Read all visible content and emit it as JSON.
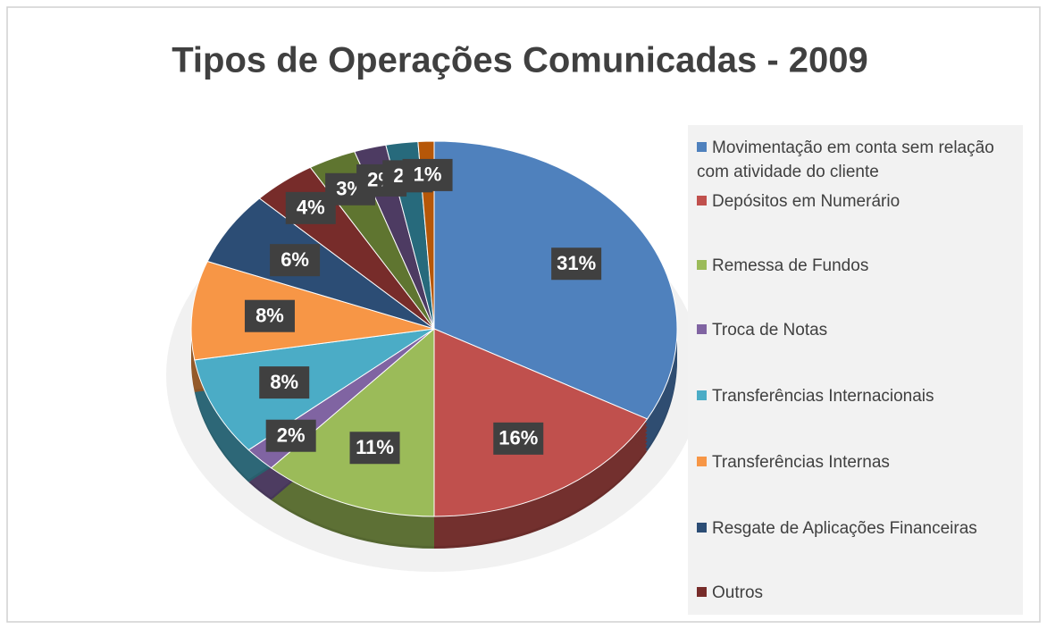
{
  "chart_data": {
    "type": "pie",
    "title": "Tipos de Operações Comunicadas - 2009",
    "categories": [
      "Movimentação em conta sem relação com atividade do cliente",
      "Depósitos em Numerário",
      "Remessa de Fundos",
      "Troca de Notas",
      "Transferências Internacionais",
      "Transferências Internas",
      "Resgate de Aplicações Financeiras",
      "Outros",
      null,
      null,
      null,
      null
    ],
    "values": [
      31,
      16,
      11,
      2,
      8,
      8,
      6,
      4,
      3,
      2,
      2,
      1
    ],
    "value_labels": [
      "31%",
      "16%",
      "11%",
      "2%",
      "8%",
      "8%",
      "6%",
      "4%",
      "3%",
      "2%",
      "2%",
      "1%"
    ],
    "colors": [
      "#4f81bd",
      "#c0504d",
      "#9bbb59",
      "#8064a2",
      "#4bacc6",
      "#f79646",
      "#2c4d75",
      "#772c2a",
      "#5f7530",
      "#4d3b62",
      "#276a7c",
      "#b65708"
    ],
    "legend": "right"
  }
}
